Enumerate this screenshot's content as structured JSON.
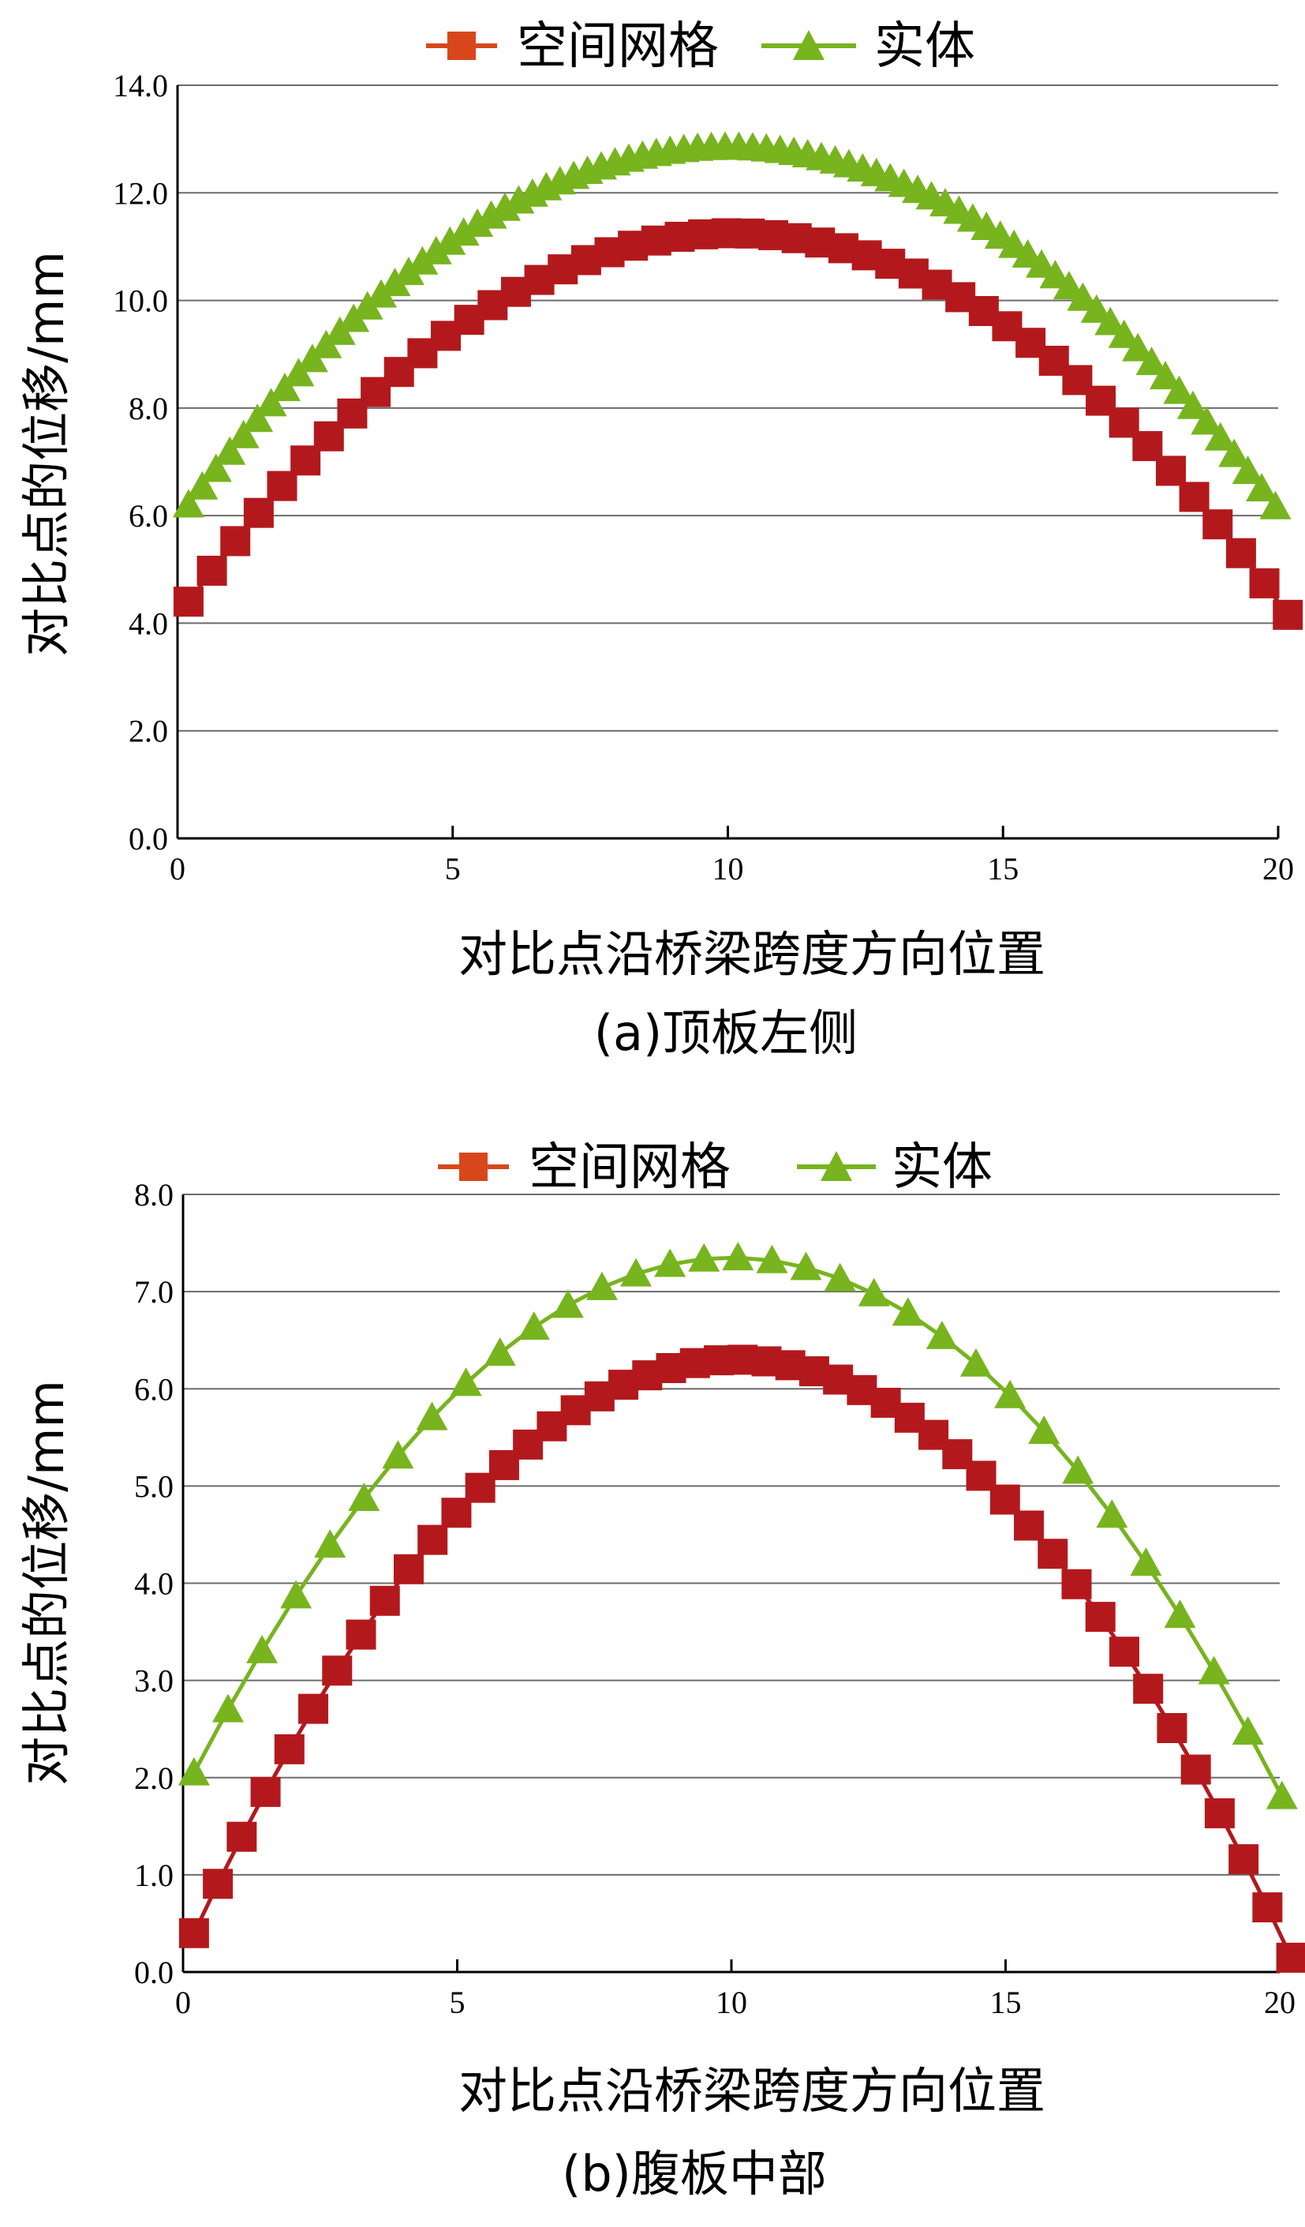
{
  "chart_data": [
    {
      "type": "line",
      "caption": "(a)顶板左侧",
      "xlabel": "对比点沿桥梁跨度方向位置",
      "ylabel": "对比点的位移/mm",
      "xlim": [
        0,
        20
      ],
      "ylim": [
        0,
        14
      ],
      "xticks": [
        "0",
        "5",
        "10",
        "15",
        "20"
      ],
      "yticks": [
        "0.0",
        "2.0",
        "4.0",
        "6.0",
        "8.0",
        "10.0",
        "12.0",
        "14.0"
      ],
      "grid": "horizontal",
      "legend_position": "top",
      "series": [
        {
          "name": "空间网格",
          "marker": "square",
          "color": "#b3191c",
          "shape": "parabola",
          "x_start": 0.2,
          "x_end": 20,
          "x_step": 0.425,
          "y_start": 4.4,
          "y_peak": 11.25,
          "y_end": 4.4,
          "x_peak": 10.1
        },
        {
          "name": "实体",
          "marker": "triangle",
          "color": "#77b41e",
          "shape": "parabola",
          "x_start": 0.2,
          "x_end": 20,
          "x_step": 0.25,
          "y_start": 6.2,
          "y_peak": 12.85,
          "y_end": 6.1,
          "x_peak": 10.0
        }
      ]
    },
    {
      "type": "line",
      "caption": "(b)腹板中部",
      "xlabel": "对比点沿桥梁跨度方向位置",
      "ylabel": "对比点的位移/mm",
      "xlim": [
        0,
        20
      ],
      "ylim": [
        0,
        8
      ],
      "xticks": [
        "0",
        "5",
        "10",
        "15",
        "20"
      ],
      "yticks": [
        "0.0",
        "1.0",
        "2.0",
        "3.0",
        "4.0",
        "5.0",
        "6.0",
        "7.0",
        "8.0"
      ],
      "grid": "horizontal",
      "legend_position": "top",
      "series": [
        {
          "name": "空间网格",
          "marker": "square",
          "color": "#b3191c",
          "shape": "parabola",
          "x_start": 0.2,
          "x_end": 20,
          "x_step": 0.435,
          "y_start": 0.4,
          "y_peak": 6.3,
          "y_end": 0.4,
          "x_peak": 10.1
        },
        {
          "name": "实体",
          "marker": "triangle",
          "color": "#77b41e",
          "shape": "parabola",
          "x_start": 0.2,
          "x_end": 20,
          "x_step": 0.62,
          "y_start": 2.05,
          "y_peak": 7.35,
          "y_end": 1.85,
          "x_peak": 10.0
        }
      ]
    }
  ]
}
